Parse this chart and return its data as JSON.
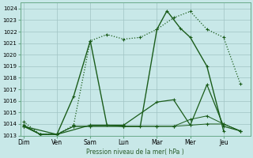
{
  "background_color": "#c8e8e8",
  "grid_color": "#a0c4c4",
  "line_color": "#1a5c1a",
  "xlabel_text": "Pression niveau de la mer( hPa )",
  "ylim": [
    1013,
    1024.5
  ],
  "yticks": [
    1013,
    1014,
    1015,
    1016,
    1017,
    1018,
    1019,
    1020,
    1021,
    1022,
    1023,
    1024
  ],
  "xtick_labels": [
    "Dim",
    "Ven",
    "Sam",
    "Lun",
    "Mar",
    "Mer",
    "Jeu"
  ],
  "series": [
    {
      "x": [
        0,
        0.5,
        1.0,
        1.5,
        2.0,
        2.5,
        3.0,
        3.5,
        4.0,
        4.5,
        5.0,
        5.5,
        6.0,
        6.5
      ],
      "y": [
        1014.2,
        1013.1,
        1013.1,
        1013.9,
        1021.2,
        1021.75,
        1021.35,
        1021.5,
        1022.2,
        1023.2,
        1023.75,
        1022.2,
        1021.5,
        1017.5
      ],
      "linestyle": "dotted",
      "linewidth": 0.9,
      "marker": "+"
    },
    {
      "x": [
        0,
        0.5,
        1.0,
        1.5,
        2.0,
        2.5,
        3.0,
        3.5,
        4.0,
        4.3,
        4.7,
        5.0,
        5.5,
        6.0
      ],
      "y": [
        1013.9,
        1013.1,
        1013.1,
        1016.4,
        1021.2,
        1013.9,
        1013.8,
        1013.8,
        1022.2,
        1023.8,
        1022.3,
        1021.5,
        1019.0,
        1013.4
      ],
      "linestyle": "solid",
      "linewidth": 1.0,
      "marker": "+"
    },
    {
      "x": [
        0,
        1.0,
        2.0,
        3.0,
        4.0,
        4.5,
        5.0,
        5.5,
        6.0,
        6.5
      ],
      "y": [
        1013.8,
        1013.1,
        1013.9,
        1013.9,
        1015.9,
        1016.1,
        1013.9,
        1017.4,
        1013.8,
        1013.4
      ],
      "linestyle": "solid",
      "linewidth": 0.9,
      "marker": "+"
    },
    {
      "x": [
        0,
        0.5,
        1.0,
        1.5,
        2.0,
        3.0,
        4.0,
        4.5,
        5.0,
        5.5,
        6.0,
        6.5
      ],
      "y": [
        1013.8,
        1013.1,
        1013.1,
        1013.8,
        1013.8,
        1013.8,
        1013.8,
        1013.8,
        1014.4,
        1014.7,
        1014.0,
        1013.4
      ],
      "linestyle": "solid",
      "linewidth": 0.7,
      "marker": "+"
    },
    {
      "x": [
        0,
        0.5,
        1.0,
        1.5,
        2.0,
        3.0,
        4.0,
        4.5,
        5.0,
        5.5,
        6.0,
        6.5
      ],
      "y": [
        1013.8,
        1013.1,
        1013.1,
        1013.8,
        1013.8,
        1013.8,
        1013.8,
        1013.8,
        1013.9,
        1014.0,
        1014.0,
        1013.4
      ],
      "linestyle": "solid",
      "linewidth": 0.7,
      "marker": "+"
    }
  ]
}
